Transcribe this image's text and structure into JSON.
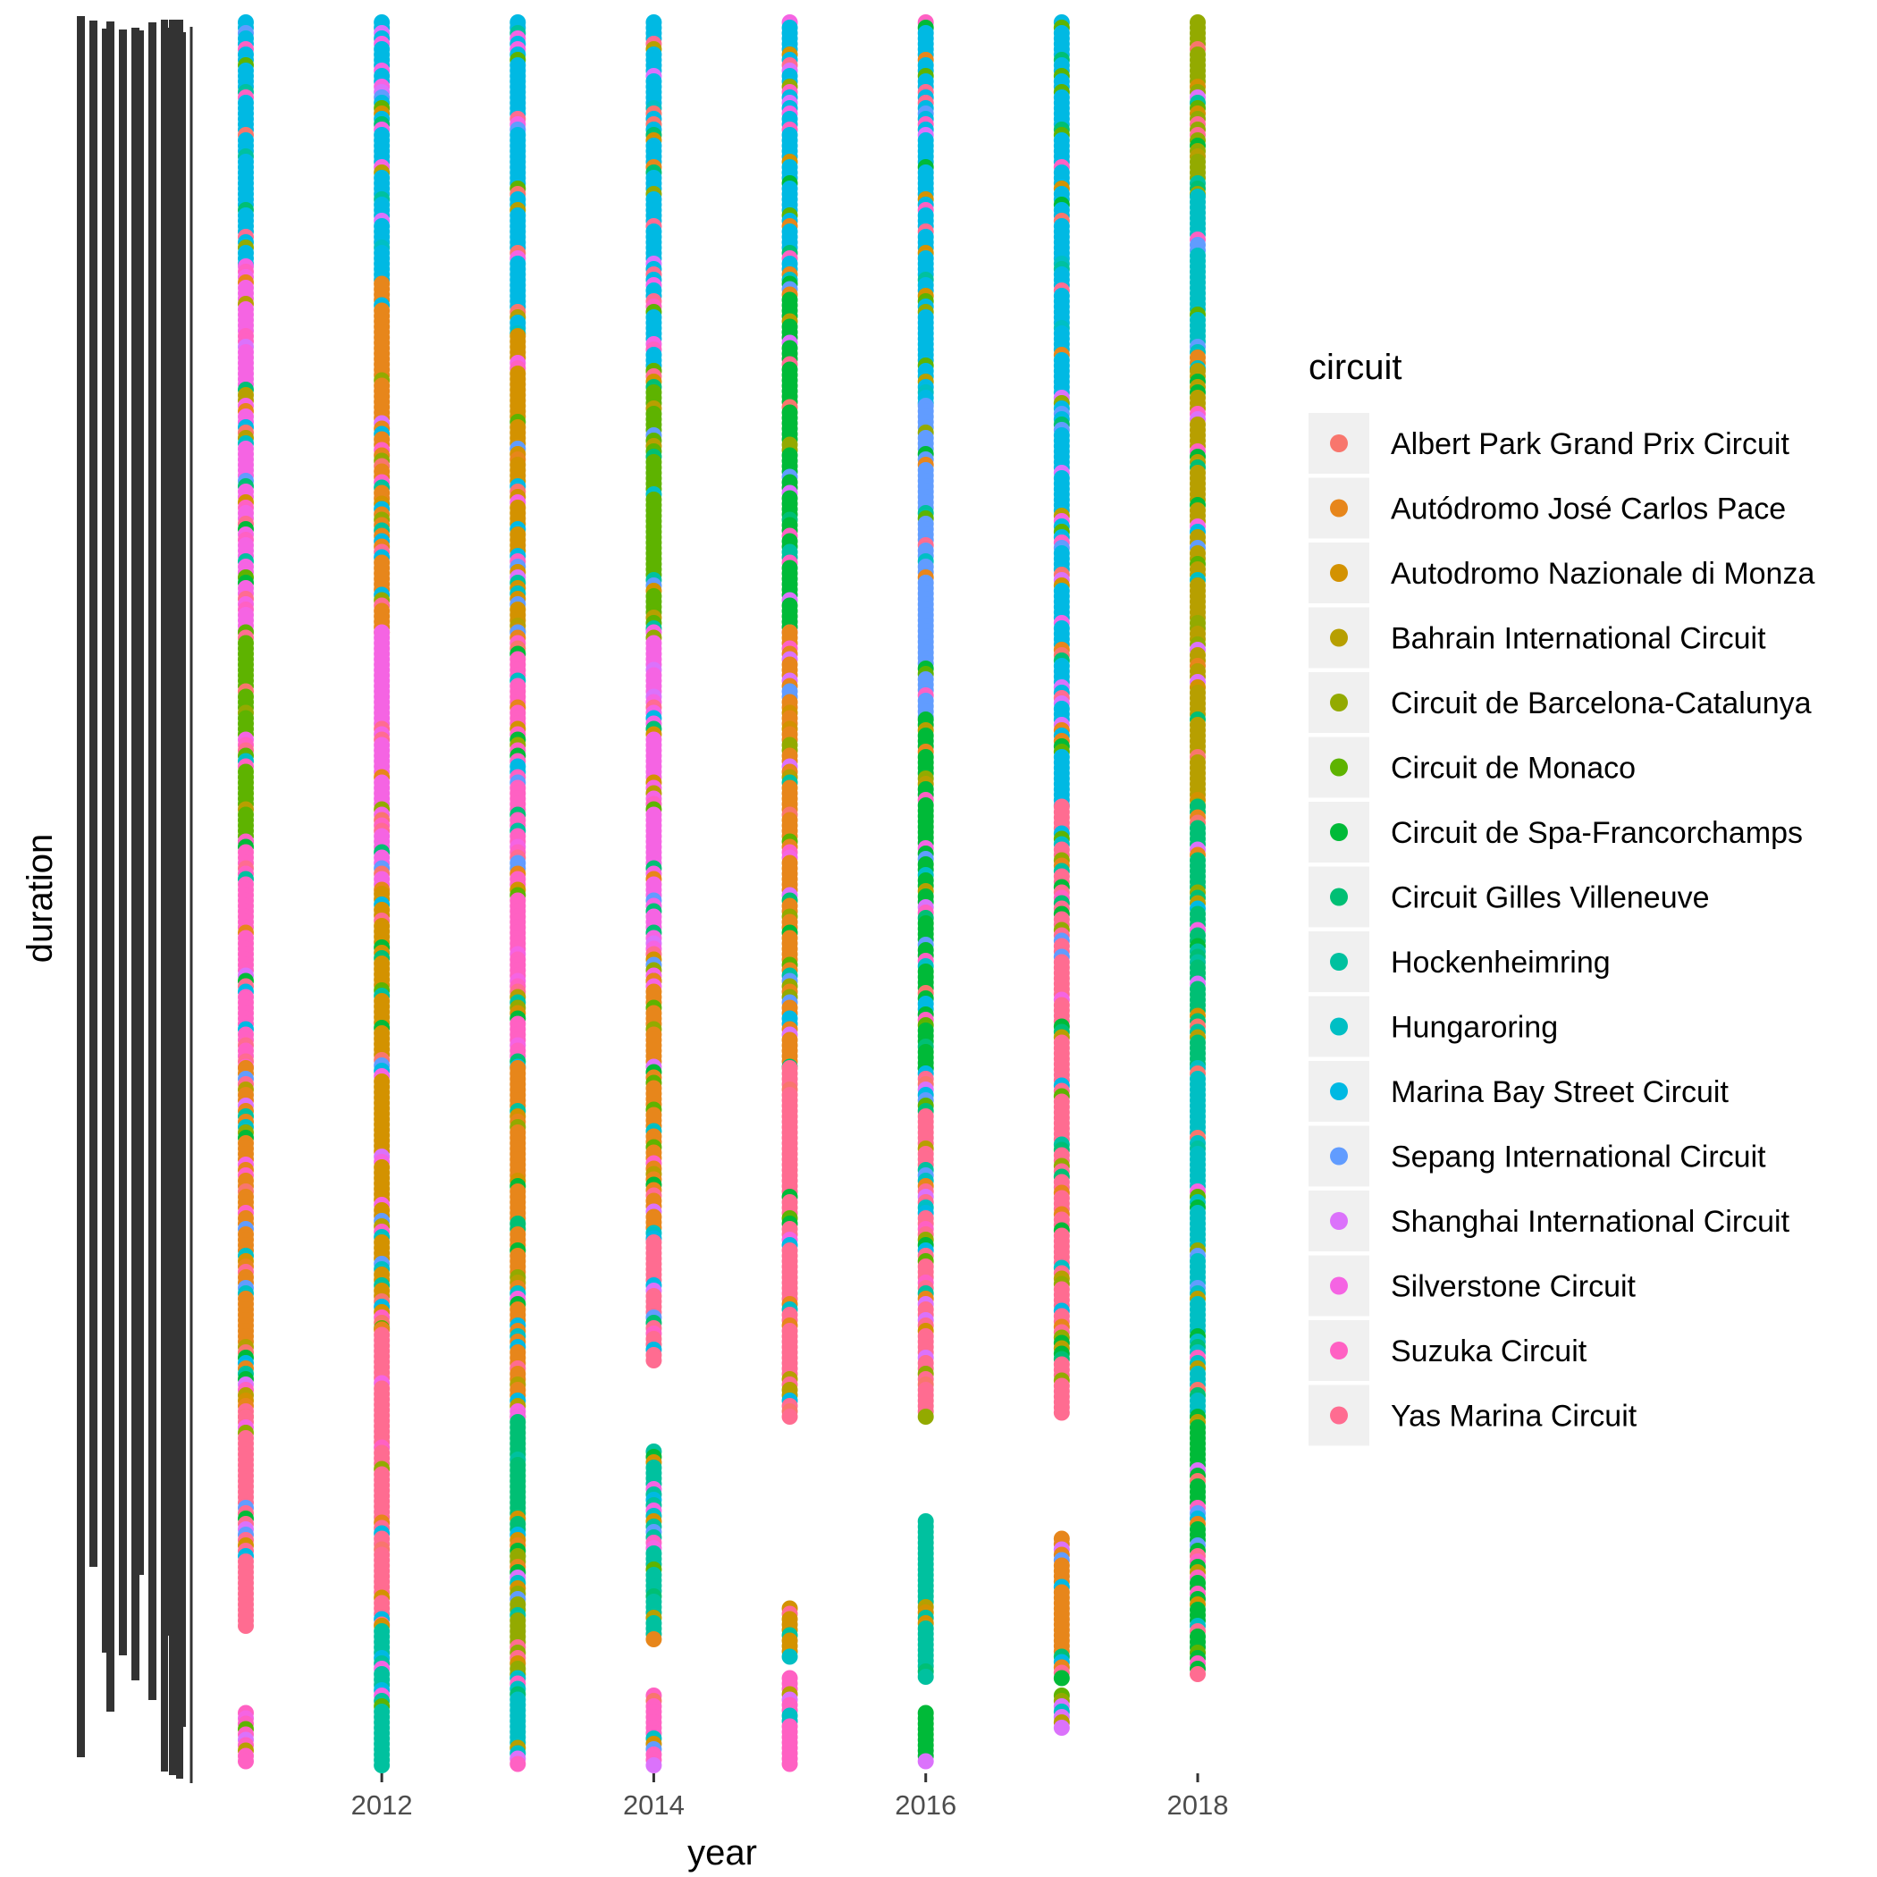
{
  "chart_data": {
    "type": "scatter",
    "title": "",
    "xlabel": "year",
    "ylabel": "duration",
    "x_ticks": [
      "2012",
      "2014",
      "2016",
      "2018"
    ],
    "xlim": [
      2011,
      2018
    ],
    "y_axis_note": "duration is a categorical (text) axis with overplotted, illegible tick labels",
    "legend": {
      "title": "circuit",
      "placement": "right",
      "items": [
        {
          "name": "Albert Park Grand Prix Circuit",
          "color": "#F8766D"
        },
        {
          "name": "Autódromo José Carlos Pace",
          "color": "#E7861B"
        },
        {
          "name": "Autodromo Nazionale di Monza",
          "color": "#D39200"
        },
        {
          "name": "Bahrain International Circuit",
          "color": "#B79F00"
        },
        {
          "name": "Circuit de Barcelona-Catalunya",
          "color": "#93AA00"
        },
        {
          "name": "Circuit de Monaco",
          "color": "#5EB300"
        },
        {
          "name": "Circuit de Spa-Francorchamps",
          "color": "#00BA38"
        },
        {
          "name": "Circuit Gilles Villeneuve",
          "color": "#00BF74"
        },
        {
          "name": "Hockenheimring",
          "color": "#00C19F"
        },
        {
          "name": "Hungaroring",
          "color": "#00BFC4"
        },
        {
          "name": "Marina Bay Street Circuit",
          "color": "#00B9E3"
        },
        {
          "name": "Sepang International Circuit",
          "color": "#619CFF"
        },
        {
          "name": "Shanghai International Circuit",
          "color": "#DB72FB"
        },
        {
          "name": "Silverstone Circuit",
          "color": "#F564E3"
        },
        {
          "name": "Suzuka Circuit",
          "color": "#FF61C3"
        },
        {
          "name": "Yas Marina Circuit",
          "color": "#FF6C91"
        }
      ]
    },
    "series": [
      {
        "year": 2011,
        "segments": [
          {
            "circuit": "Marina Bay Street Circuit",
            "from": 0.0,
            "to": 0.14
          },
          {
            "circuit": "Silverstone Circuit",
            "from": 0.14,
            "to": 0.35
          },
          {
            "circuit": "Circuit de Monaco",
            "from": 0.35,
            "to": 0.47
          },
          {
            "circuit": "Suzuka Circuit",
            "from": 0.47,
            "to": 0.6
          },
          {
            "circuit": "Autódromo José Carlos Pace",
            "from": 0.6,
            "to": 0.8
          },
          {
            "circuit": "Yas Marina Circuit",
            "from": 0.8,
            "to": 0.92
          },
          {
            "circuit": "Suzuka Circuit",
            "from": 0.97,
            "to": 1.0
          }
        ]
      },
      {
        "year": 2012,
        "segments": [
          {
            "circuit": "Marina Bay Street Circuit",
            "from": 0.0,
            "to": 0.15
          },
          {
            "circuit": "Autódromo José Carlos Pace",
            "from": 0.15,
            "to": 0.35
          },
          {
            "circuit": "Silverstone Circuit",
            "from": 0.35,
            "to": 0.5
          },
          {
            "circuit": "Autodromo Nazionale di Monza",
            "from": 0.5,
            "to": 0.75
          },
          {
            "circuit": "Yas Marina Circuit",
            "from": 0.75,
            "to": 0.92
          },
          {
            "circuit": "Hockenheimring",
            "from": 0.92,
            "to": 1.0
          }
        ]
      },
      {
        "year": 2013,
        "segments": [
          {
            "circuit": "Marina Bay Street Circuit",
            "from": 0.0,
            "to": 0.18
          },
          {
            "circuit": "Autodromo Nazionale di Monza",
            "from": 0.18,
            "to": 0.35
          },
          {
            "circuit": "Suzuka Circuit",
            "from": 0.35,
            "to": 0.6
          },
          {
            "circuit": "Autódromo José Carlos Pace",
            "from": 0.6,
            "to": 0.8
          },
          {
            "circuit": "Circuit Gilles Villeneuve",
            "from": 0.8,
            "to": 0.88
          },
          {
            "circuit": "Circuit de Barcelona-Catalunya",
            "from": 0.88,
            "to": 0.95
          },
          {
            "circuit": "Hungaroring",
            "from": 0.95,
            "to": 1.0
          }
        ]
      },
      {
        "year": 2014,
        "segments": [
          {
            "circuit": "Marina Bay Street Circuit",
            "from": 0.0,
            "to": 0.2
          },
          {
            "circuit": "Circuit de Monaco",
            "from": 0.2,
            "to": 0.35
          },
          {
            "circuit": "Silverstone Circuit",
            "from": 0.35,
            "to": 0.55
          },
          {
            "circuit": "Autódromo José Carlos Pace",
            "from": 0.55,
            "to": 0.7
          },
          {
            "circuit": "Yas Marina Circuit",
            "from": 0.7,
            "to": 0.77
          },
          {
            "circuit": "Hockenheimring",
            "from": 0.82,
            "to": 0.93
          },
          {
            "circuit": "Suzuka Circuit",
            "from": 0.96,
            "to": 1.0
          }
        ]
      },
      {
        "year": 2015,
        "segments": [
          {
            "circuit": "Marina Bay Street Circuit",
            "from": 0.0,
            "to": 0.15
          },
          {
            "circuit": "Circuit de Spa-Francorchamps",
            "from": 0.15,
            "to": 0.35
          },
          {
            "circuit": "Autódromo José Carlos Pace",
            "from": 0.35,
            "to": 0.6
          },
          {
            "circuit": "Yas Marina Circuit",
            "from": 0.6,
            "to": 0.8
          },
          {
            "circuit": "Autodromo Nazionale di Monza",
            "from": 0.91,
            "to": 0.94
          },
          {
            "circuit": "Suzuka Circuit",
            "from": 0.95,
            "to": 1.0
          }
        ]
      },
      {
        "year": 2016,
        "segments": [
          {
            "circuit": "Marina Bay Street Circuit",
            "from": 0.0,
            "to": 0.22
          },
          {
            "circuit": "Sepang International Circuit",
            "from": 0.22,
            "to": 0.4
          },
          {
            "circuit": "Circuit de Spa-Francorchamps",
            "from": 0.4,
            "to": 0.6
          },
          {
            "circuit": "Yas Marina Circuit",
            "from": 0.6,
            "to": 0.8
          },
          {
            "circuit": "Hockenheimring",
            "from": 0.86,
            "to": 0.95
          },
          {
            "circuit": "Circuit de Spa-Francorchamps",
            "from": 0.97,
            "to": 1.0
          }
        ]
      },
      {
        "year": 2017,
        "segments": [
          {
            "circuit": "Marina Bay Street Circuit",
            "from": 0.0,
            "to": 0.45
          },
          {
            "circuit": "Yas Marina Circuit",
            "from": 0.45,
            "to": 0.8
          },
          {
            "circuit": "Autódromo José Carlos Pace",
            "from": 0.87,
            "to": 0.95
          },
          {
            "circuit": "Shanghai International Circuit",
            "from": 0.96,
            "to": 0.98
          }
        ]
      },
      {
        "year": 2018,
        "segments": [
          {
            "circuit": "Circuit de Barcelona-Catalunya",
            "from": 0.0,
            "to": 0.1
          },
          {
            "circuit": "Hungaroring",
            "from": 0.1,
            "to": 0.2
          },
          {
            "circuit": "Bahrain International Circuit",
            "from": 0.2,
            "to": 0.45
          },
          {
            "circuit": "Circuit Gilles Villeneuve",
            "from": 0.45,
            "to": 0.6
          },
          {
            "circuit": "Hungaroring",
            "from": 0.6,
            "to": 0.8
          },
          {
            "circuit": "Circuit de Spa-Francorchamps",
            "from": 0.8,
            "to": 0.95
          }
        ]
      }
    ]
  }
}
